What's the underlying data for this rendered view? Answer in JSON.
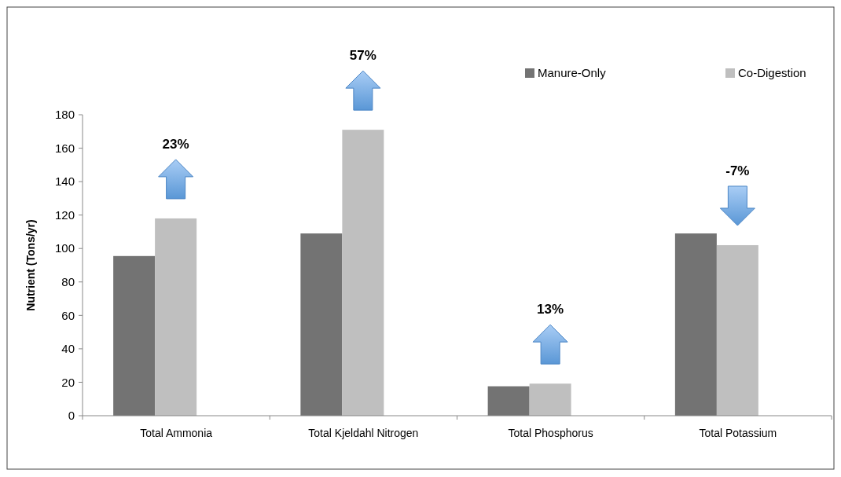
{
  "chart_data": {
    "type": "bar",
    "ylabel": "Nutrient (Tons/yr)",
    "categories": [
      "Total Ammonia",
      "Total Kjeldahl Nitrogen",
      "Total Phosphorus",
      "Total Potassium"
    ],
    "series": [
      {
        "name": "Manure-Only",
        "color": "#737373",
        "values": [
          95.5,
          109,
          17.6,
          109
        ]
      },
      {
        "name": "Co-Digestion",
        "color": "#bfbfbf",
        "values": [
          118,
          171,
          19.2,
          102
        ]
      }
    ],
    "ylim": [
      0,
      180
    ],
    "yticks": [
      0,
      20,
      40,
      60,
      80,
      100,
      120,
      140,
      160,
      180
    ],
    "grid": false,
    "legend": "top right",
    "annotations": [
      "23%",
      "57%",
      "13%",
      "-7%"
    ]
  }
}
